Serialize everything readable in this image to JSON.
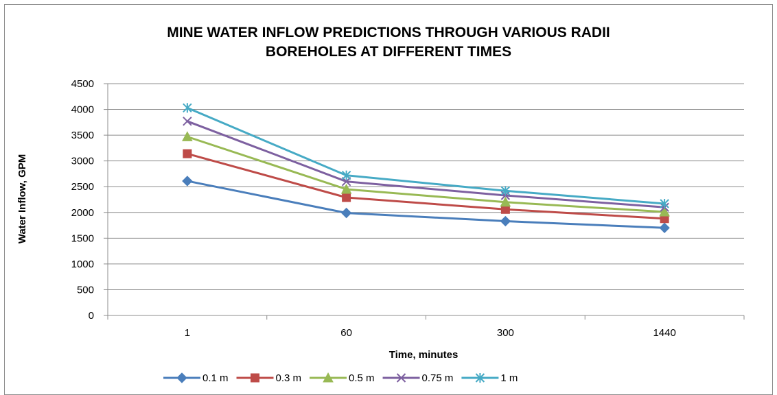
{
  "chart_data": {
    "type": "line",
    "title_lines": [
      "MINE WATER INFLOW PREDICTIONS THROUGH VARIOUS RADII",
      "BOREHOLES AT DIFFERENT TIMES"
    ],
    "xlabel": "Time, minutes",
    "ylabel": "Water Inflow, GPM",
    "categories": [
      "1",
      "60",
      "300",
      "1440"
    ],
    "ylim": [
      0,
      4500
    ],
    "yticks": [
      "0",
      "500",
      "1000",
      "1500",
      "2000",
      "2500",
      "3000",
      "3500",
      "4000",
      "4500"
    ],
    "ytick_values": [
      0,
      500,
      1000,
      1500,
      2000,
      2500,
      3000,
      3500,
      4000,
      4500
    ],
    "grid": "horizontal",
    "legend_position": "bottom",
    "series": [
      {
        "name": "0.1 m",
        "values": [
          2610,
          1990,
          1830,
          1700
        ],
        "color": "#4A7EBB",
        "marker": "diamond"
      },
      {
        "name": "0.3 m",
        "values": [
          3140,
          2290,
          2060,
          1880
        ],
        "color": "#BE4B48",
        "marker": "square"
      },
      {
        "name": "0.5 m",
        "values": [
          3470,
          2450,
          2200,
          2010
        ],
        "color": "#98B954",
        "marker": "triangle"
      },
      {
        "name": "0.75 m",
        "values": [
          3770,
          2600,
          2330,
          2100
        ],
        "color": "#7D60A0",
        "marker": "x"
      },
      {
        "name": "1 m",
        "values": [
          4030,
          2720,
          2420,
          2170
        ],
        "color": "#46AAC5",
        "marker": "star"
      }
    ]
  }
}
